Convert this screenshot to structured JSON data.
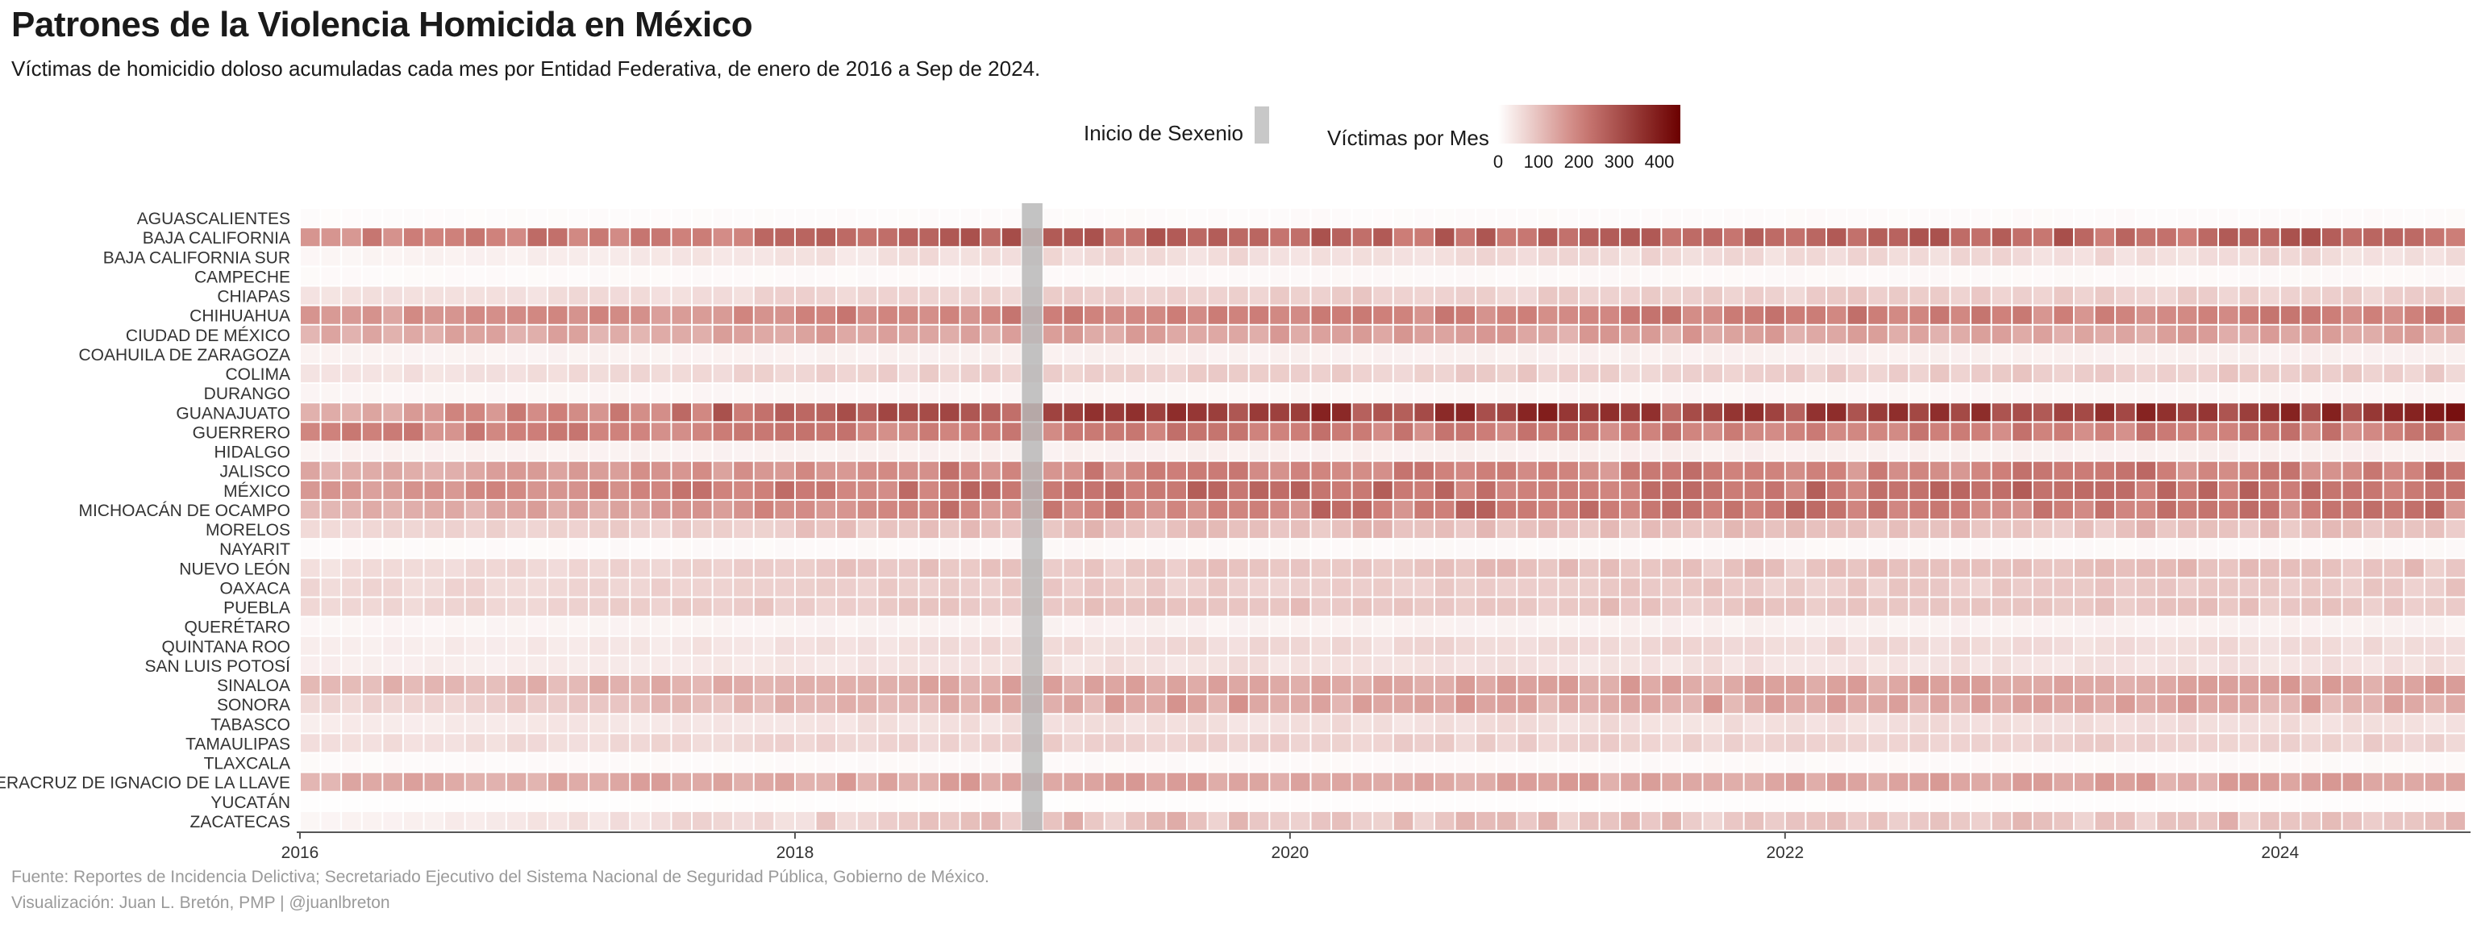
{
  "title": "Patrones de la Violencia Homicida en México",
  "subtitle": "Víctimas de homicidio doloso acumuladas cada mes por Entidad Federativa, de enero de 2016 a  Sep  de 2024.",
  "legend": {
    "sexenio_label": "Inicio de Sexenio",
    "victims_label": "Víctimas por Mes",
    "ticks": [
      "0",
      "100",
      "200",
      "300",
      "400"
    ],
    "color_low": "#ffffff",
    "color_high": "#6b0000",
    "sexenio_color": "#c8c8c8"
  },
  "footer": {
    "source": "Fuente: Reportes de Incidencia Delictiva; Secretariado Ejecutivo del Sistema Nacional de Seguridad Pública, Gobierno de México.",
    "credit": "Visualización: Juan L. Bretón, PMP | @juanlbreton"
  },
  "chart_data": {
    "type": "heatmap",
    "x_start": "2016-01",
    "x_end": "2024-09",
    "x_ticks": [
      "2016",
      "2018",
      "2020",
      "2022",
      "2024"
    ],
    "sexenio_start": "2018-12",
    "value_range": [
      0,
      450
    ],
    "states": [
      {
        "name": "AGUASCALIENTES",
        "base": 6,
        "peak": 8
      },
      {
        "name": "BAJA CALIFORNIA",
        "base": 190,
        "peak": 270
      },
      {
        "name": "BAJA CALIFORNIA SUR",
        "base": 15,
        "peak": 70
      },
      {
        "name": "CAMPECHE",
        "base": 8,
        "peak": 12
      },
      {
        "name": "CHIAPAS",
        "base": 45,
        "peak": 85
      },
      {
        "name": "CHIHUAHUA",
        "base": 160,
        "peak": 210
      },
      {
        "name": "CIUDAD DE MÉXICO",
        "base": 130,
        "peak": 150
      },
      {
        "name": "COAHUILA DE ZARAGOZA",
        "base": 20,
        "peak": 25
      },
      {
        "name": "COLIMA",
        "base": 45,
        "peak": 85
      },
      {
        "name": "DURANGO",
        "base": 15,
        "peak": 15
      },
      {
        "name": "GUANAJUATO",
        "base": 120,
        "peak": 400
      },
      {
        "name": "GUERRERO",
        "base": 190,
        "peak": 210
      },
      {
        "name": "HIDALGO",
        "base": 20,
        "peak": 25
      },
      {
        "name": "JALISCO",
        "base": 130,
        "peak": 220
      },
      {
        "name": "MÉXICO",
        "base": 170,
        "peak": 250
      },
      {
        "name": "MICHOACÁN DE OCAMPO",
        "base": 110,
        "peak": 240
      },
      {
        "name": "MORELOS",
        "base": 60,
        "peak": 110
      },
      {
        "name": "NAYARIT",
        "base": 8,
        "peak": 12
      },
      {
        "name": "NUEVO LEÓN",
        "base": 50,
        "peak": 110
      },
      {
        "name": "OAXACA",
        "base": 60,
        "peak": 90
      },
      {
        "name": "PUEBLA",
        "base": 60,
        "peak": 100
      },
      {
        "name": "QUERÉTARO",
        "base": 15,
        "peak": 25
      },
      {
        "name": "QUINTANA ROO",
        "base": 25,
        "peak": 70
      },
      {
        "name": "SAN LUIS POTOSÍ",
        "base": 25,
        "peak": 55
      },
      {
        "name": "SINALOA",
        "base": 110,
        "peak": 150
      },
      {
        "name": "SONORA",
        "base": 60,
        "peak": 160
      },
      {
        "name": "TABASCO",
        "base": 30,
        "peak": 60
      },
      {
        "name": "TAMAULIPAS",
        "base": 50,
        "peak": 80
      },
      {
        "name": "TLAXCALA",
        "base": 8,
        "peak": 10
      },
      {
        "name": "VERACRUZ DE IGNACIO DE LA LLAVE",
        "base": 130,
        "peak": 150
      },
      {
        "name": "YUCATÁN",
        "base": 3,
        "peak": 5
      },
      {
        "name": "ZACATECAS",
        "base": 15,
        "peak": 120
      }
    ]
  }
}
